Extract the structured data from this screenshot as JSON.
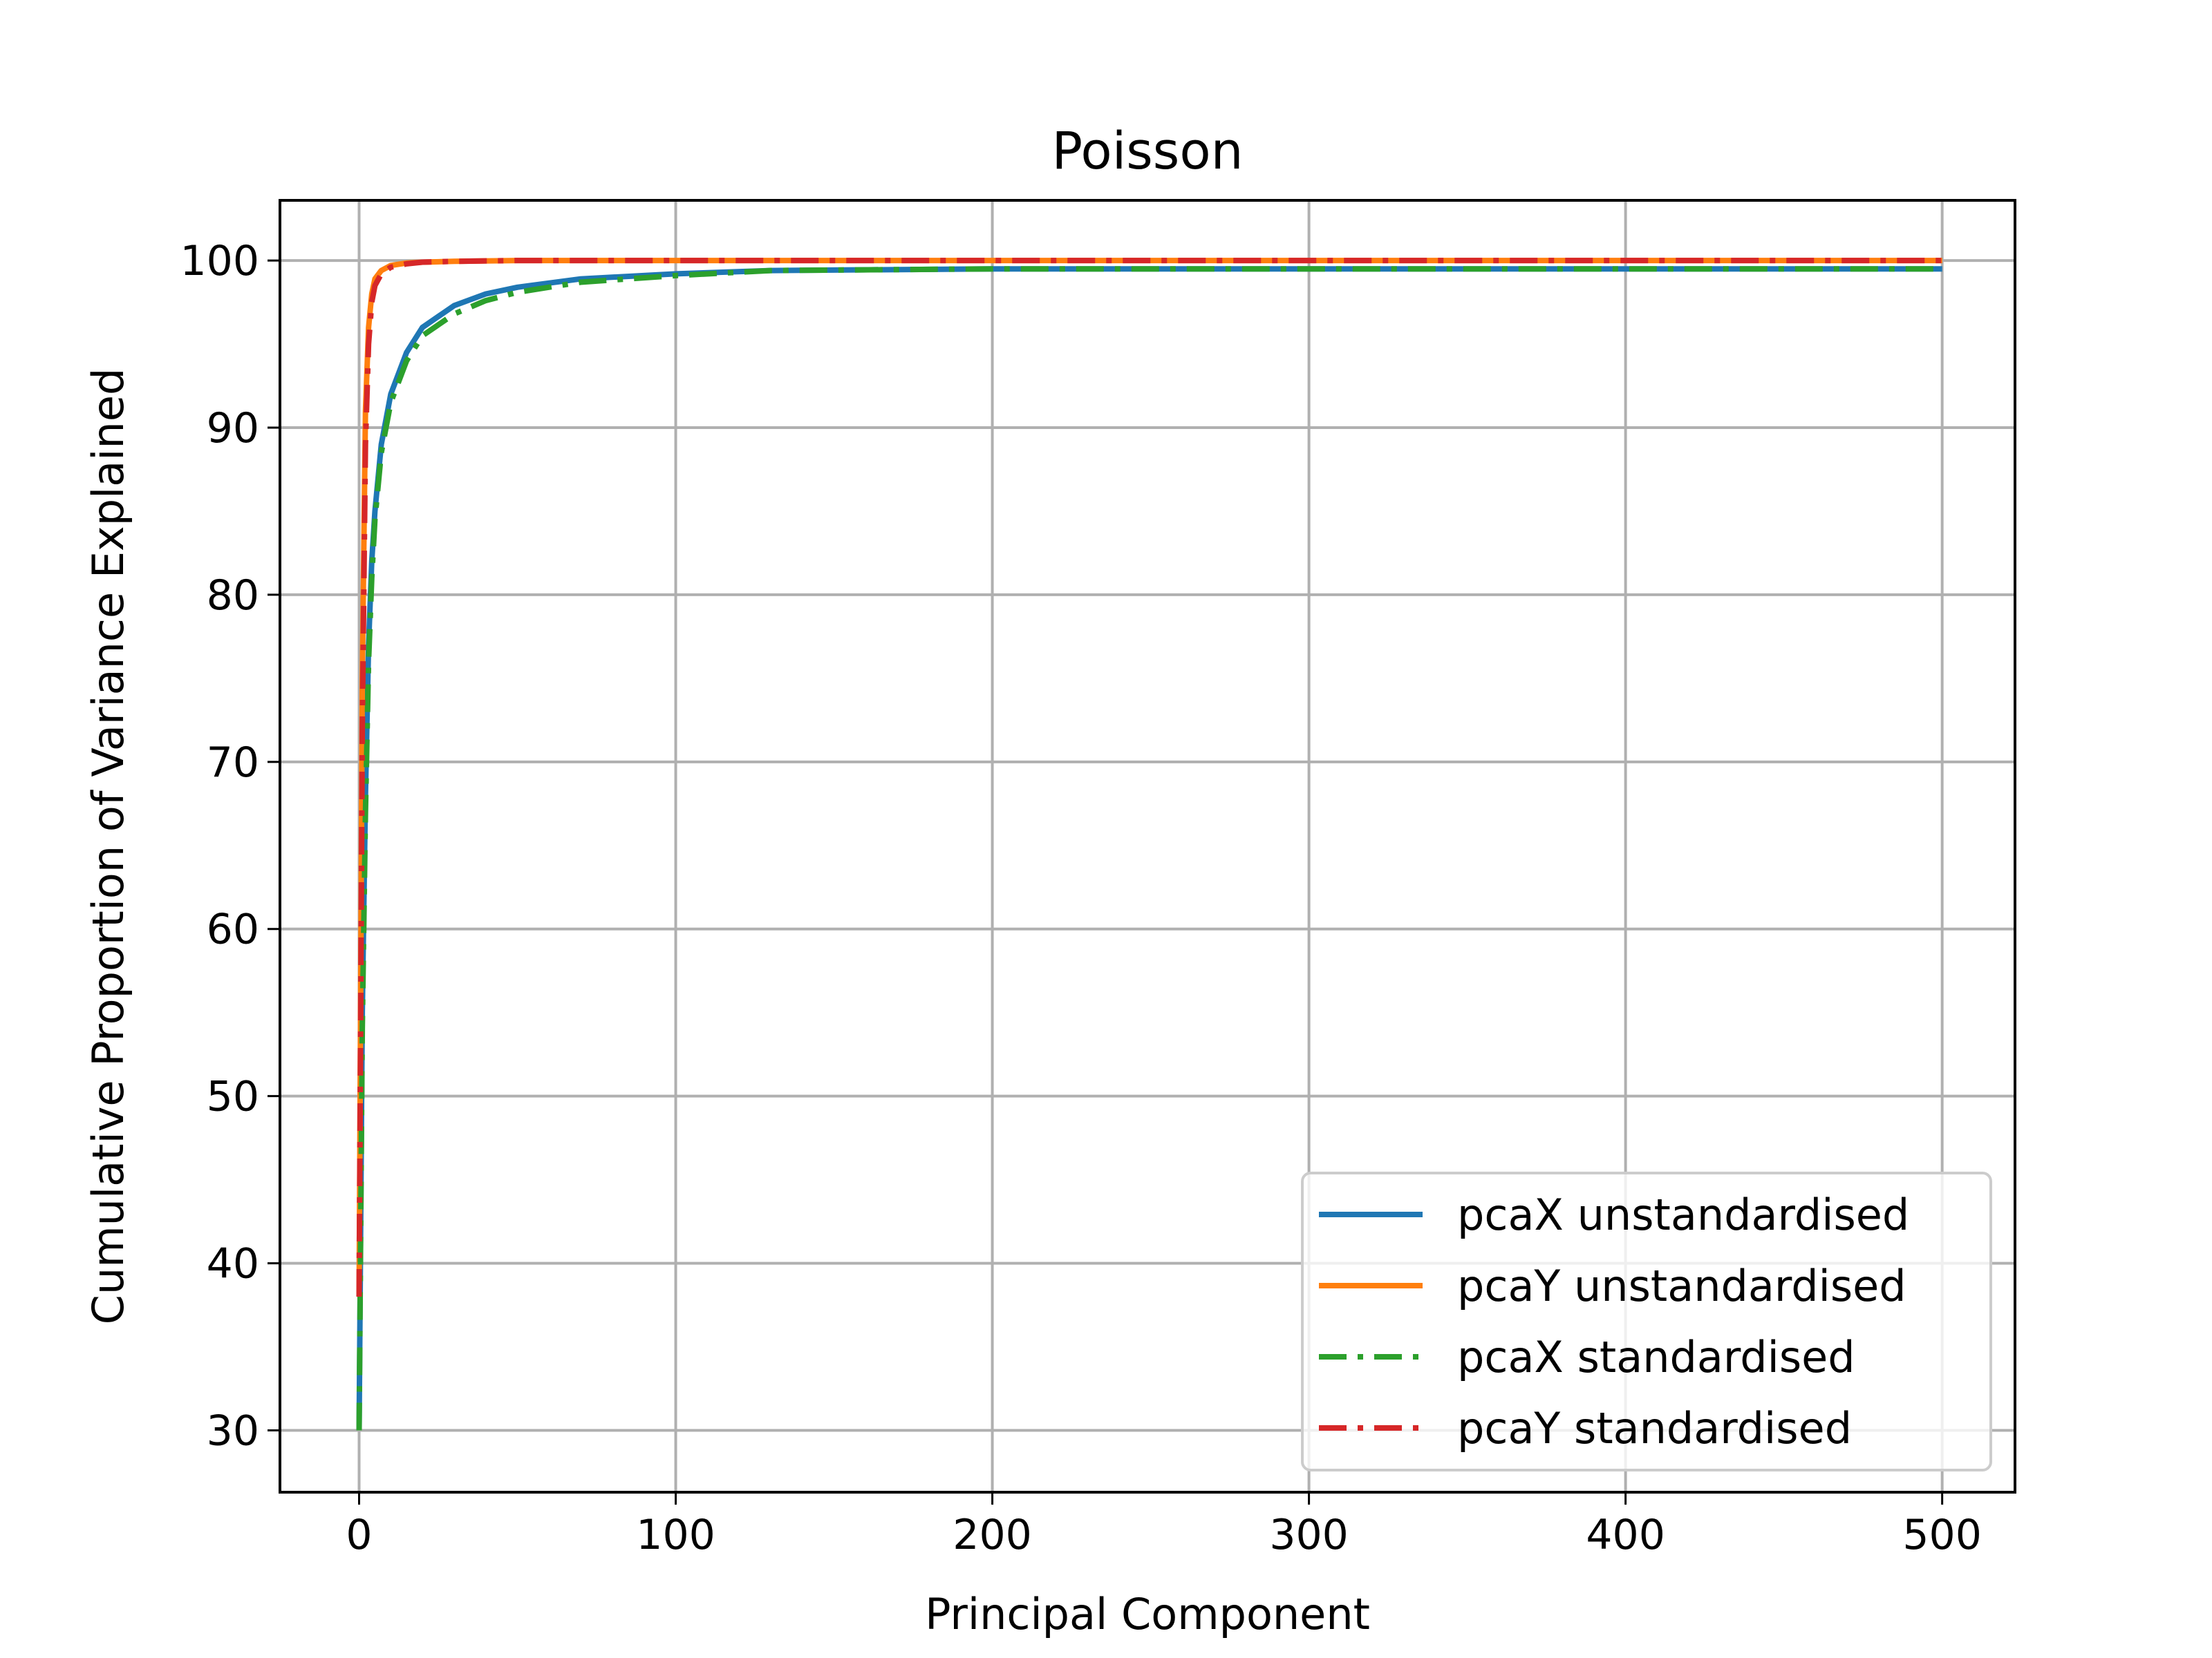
{
  "chart_data": {
    "type": "line",
    "title": "Poisson",
    "xlabel": "Principal Component",
    "ylabel": "Cumulative Proportion of Variance Explained",
    "xlim": [
      -25,
      523
    ],
    "ylim": [
      26.3,
      103.6
    ],
    "xticks": [
      0,
      100,
      200,
      300,
      400,
      500
    ],
    "yticks": [
      30,
      40,
      50,
      60,
      70,
      80,
      90,
      100
    ],
    "grid": true,
    "legend_position": "lower-right",
    "series": [
      {
        "name": "pcaX unstandardised",
        "color": "#1f77b4",
        "dash": "solid",
        "x": [
          0,
          1,
          2,
          3,
          4,
          5,
          7,
          10,
          15,
          20,
          30,
          40,
          50,
          70,
          100,
          130,
          200,
          300,
          400,
          500
        ],
        "y": [
          30,
          55,
          68,
          77,
          82,
          85,
          89,
          92,
          94.5,
          96,
          97.3,
          98,
          98.4,
          98.9,
          99.2,
          99.4,
          99.5,
          99.5,
          99.5,
          99.5
        ]
      },
      {
        "name": "pcaY unstandardised",
        "color": "#ff7f0e",
        "dash": "solid",
        "x": [
          0,
          1,
          2,
          3,
          4,
          5,
          7,
          10,
          15,
          20,
          30,
          50,
          100,
          200,
          300,
          400,
          500
        ],
        "y": [
          38,
          75,
          91,
          96,
          98,
          98.9,
          99.4,
          99.7,
          99.85,
          99.9,
          99.95,
          100,
          100,
          100,
          100,
          100,
          100
        ]
      },
      {
        "name": "pcaX standardised",
        "color": "#2ca02c",
        "dash": "dashdot",
        "x": [
          0,
          1,
          2,
          3,
          4,
          5,
          7,
          10,
          15,
          20,
          30,
          40,
          50,
          70,
          100,
          130,
          200,
          300,
          400,
          500
        ],
        "y": [
          30,
          54,
          67,
          76,
          81,
          84.5,
          88.5,
          91.5,
          94,
          95.5,
          96.8,
          97.6,
          98.1,
          98.7,
          99.1,
          99.4,
          99.5,
          99.5,
          99.5,
          99.5
        ]
      },
      {
        "name": "pcaY standardised",
        "color": "#d62728",
        "dash": "dashdot",
        "x": [
          0,
          1,
          2,
          3,
          4,
          5,
          7,
          10,
          15,
          20,
          30,
          50,
          100,
          200,
          300,
          400,
          500
        ],
        "y": [
          38,
          72,
          89,
          95,
          97.5,
          98.5,
          99.2,
          99.6,
          99.8,
          99.9,
          99.95,
          100,
          100,
          100,
          100,
          100,
          100
        ]
      }
    ]
  }
}
